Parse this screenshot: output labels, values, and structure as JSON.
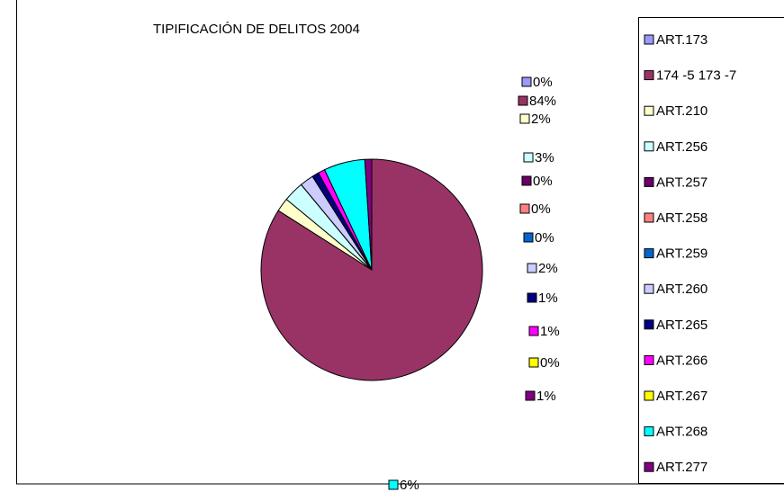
{
  "chart_data": {
    "type": "pie",
    "title": "TIPIFICACIÓN DE DELITOS 2004",
    "categories": [
      "ART.173",
      "174 -5 173 -7",
      "ART.210",
      "ART.256",
      "ART.257",
      "ART.258",
      "ART.259",
      "ART.260",
      "ART.265",
      "ART.266",
      "ART.267",
      "ART.268",
      "ART.277"
    ],
    "values": [
      0,
      84,
      2,
      3,
      0,
      0,
      0,
      2,
      1,
      1,
      0,
      6,
      1
    ],
    "value_labels": [
      "0%",
      "84%",
      "2%",
      "3%",
      "0%",
      "0%",
      "0%",
      "2%",
      "1%",
      "1%",
      "0%",
      "6%",
      "1%"
    ],
    "colors": [
      "#9999ff",
      "#993366",
      "#ffffcc",
      "#ccffff",
      "#660066",
      "#ff8080",
      "#0066cc",
      "#ccccff",
      "#000080",
      "#ff00ff",
      "#ffff00",
      "#00ffff",
      "#800080"
    ],
    "legend": "right"
  }
}
